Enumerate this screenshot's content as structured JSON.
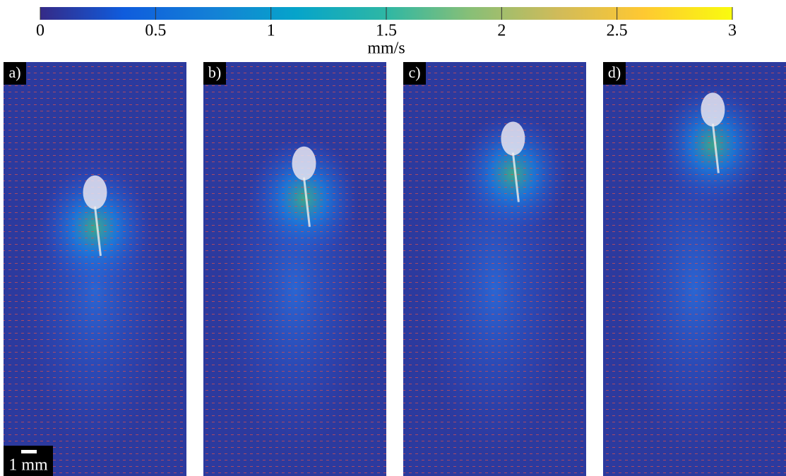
{
  "colorbar": {
    "label": "mm/s",
    "lim": [
      0,
      3
    ],
    "ticks": [
      0,
      0.5,
      1,
      1.5,
      2,
      2.5,
      3
    ]
  },
  "panels": [
    {
      "label": "a)"
    },
    {
      "label": "b)"
    },
    {
      "label": "c)"
    },
    {
      "label": "d)"
    }
  ],
  "scale_bar": {
    "label": "1 mm"
  }
}
